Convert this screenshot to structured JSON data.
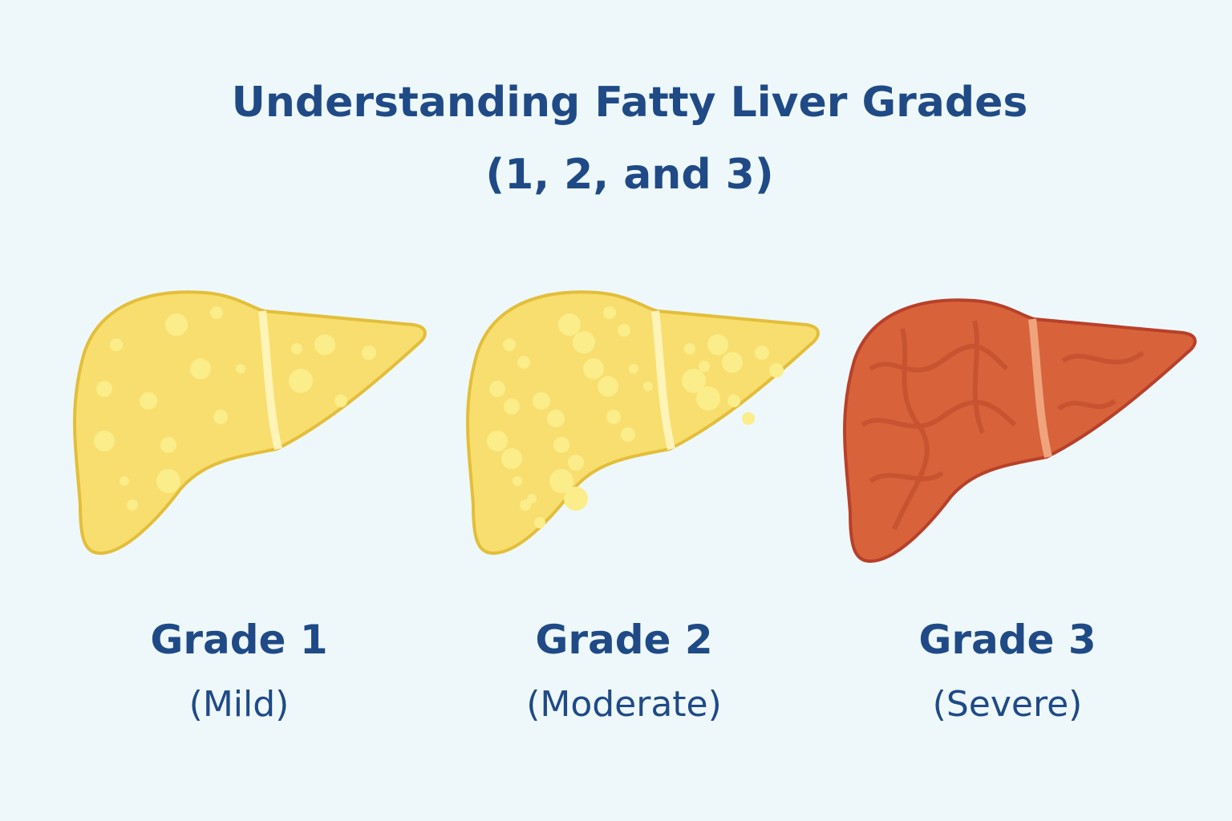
{
  "title": [
    "Understanding Fatty Liver Grades",
    "(1, 2, and 3)"
  ],
  "grades": [
    {
      "label": "Grade 1",
      "severity": "(Mild)"
    },
    {
      "label": "Grade 2",
      "severity": "(Moderate)"
    },
    {
      "label": "Grade 3",
      "severity": "(Severe)"
    }
  ]
}
